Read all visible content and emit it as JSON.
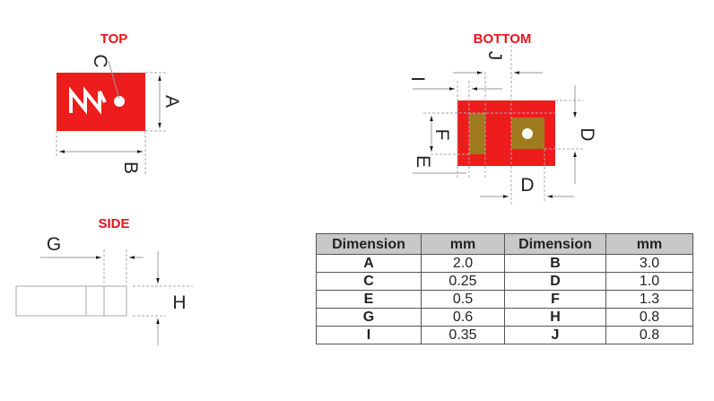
{
  "views": {
    "top": {
      "title": "TOP",
      "labels": {
        "a": "A",
        "b": "B",
        "c": "C"
      }
    },
    "bottom": {
      "title": "BOTTOM",
      "labels": {
        "d1": "D",
        "d2": "D",
        "e": "E",
        "f": "F",
        "i": "I",
        "j": "J"
      }
    },
    "side": {
      "title": "SIDE",
      "labels": {
        "g": "G",
        "h": "H"
      }
    }
  },
  "colors": {
    "body": "#ee1c1c",
    "pad": "#a07a1e",
    "title": "#e8141b"
  },
  "table": {
    "headers": [
      "Dimension",
      "mm",
      "Dimension",
      "mm"
    ],
    "rows": [
      [
        "A",
        "2.0",
        "B",
        "3.0"
      ],
      [
        "C",
        "0.25",
        "D",
        "1.0"
      ],
      [
        "E",
        "0.5",
        "F",
        "1.3"
      ],
      [
        "G",
        "0.6",
        "H",
        "0.8"
      ],
      [
        "I",
        "0.35",
        "J",
        "0.8"
      ]
    ]
  }
}
